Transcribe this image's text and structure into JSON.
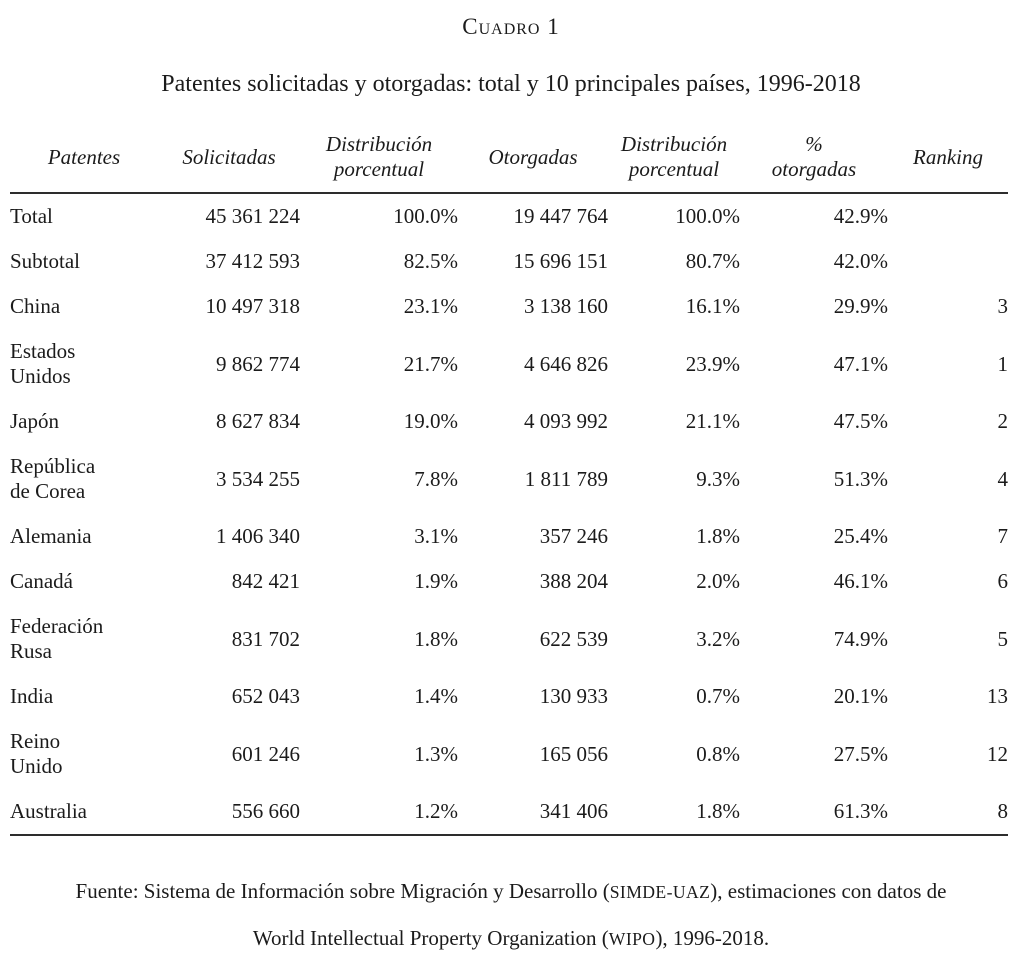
{
  "caption": {
    "number": "Cuadro 1",
    "title": "Patentes solicitadas y otorgadas: total y 10 principales países, 1996-2018"
  },
  "table": {
    "columns": [
      "Patentes",
      "Solicitadas",
      "Distribución\nporcentual",
      "Otorgadas",
      "Distribución\nporcentual",
      "%\notorgadas",
      "Ranking"
    ],
    "rows": [
      {
        "name": "Total",
        "solicitadas": "45 361 224",
        "dist1": "100.0%",
        "otorgadas": "19 447 764",
        "dist2": "100.0%",
        "pct": "42.9%",
        "ranking": ""
      },
      {
        "name": "Subtotal",
        "solicitadas": "37 412 593",
        "dist1": "82.5%",
        "otorgadas": "15 696 151",
        "dist2": "80.7%",
        "pct": "42.0%",
        "ranking": ""
      },
      {
        "name": "China",
        "solicitadas": "10 497 318",
        "dist1": "23.1%",
        "otorgadas": "3 138 160",
        "dist2": "16.1%",
        "pct": "29.9%",
        "ranking": "3"
      },
      {
        "name": "Estados\nUnidos",
        "solicitadas": "9 862 774",
        "dist1": "21.7%",
        "otorgadas": "4 646 826",
        "dist2": "23.9%",
        "pct": "47.1%",
        "ranking": "1"
      },
      {
        "name": "Japón",
        "solicitadas": "8 627 834",
        "dist1": "19.0%",
        "otorgadas": "4 093 992",
        "dist2": "21.1%",
        "pct": "47.5%",
        "ranking": "2"
      },
      {
        "name": "República\nde Corea",
        "solicitadas": "3 534 255",
        "dist1": "7.8%",
        "otorgadas": "1 811 789",
        "dist2": "9.3%",
        "pct": "51.3%",
        "ranking": "4"
      },
      {
        "name": "Alemania",
        "solicitadas": "1 406 340",
        "dist1": "3.1%",
        "otorgadas": "357 246",
        "dist2": "1.8%",
        "pct": "25.4%",
        "ranking": "7"
      },
      {
        "name": "Canadá",
        "solicitadas": "842 421",
        "dist1": "1.9%",
        "otorgadas": "388 204",
        "dist2": "2.0%",
        "pct": "46.1%",
        "ranking": "6"
      },
      {
        "name": "Federación\nRusa",
        "solicitadas": "831 702",
        "dist1": "1.8%",
        "otorgadas": "622 539",
        "dist2": "3.2%",
        "pct": "74.9%",
        "ranking": "5"
      },
      {
        "name": "India",
        "solicitadas": "652 043",
        "dist1": "1.4%",
        "otorgadas": "130 933",
        "dist2": "0.7%",
        "pct": "20.1%",
        "ranking": "13"
      },
      {
        "name": "Reino\nUnido",
        "solicitadas": "601 246",
        "dist1": "1.3%",
        "otorgadas": "165 056",
        "dist2": "0.8%",
        "pct": "27.5%",
        "ranking": "12"
      },
      {
        "name": "Australia",
        "solicitadas": "556 660",
        "dist1": "1.2%",
        "otorgadas": "341 406",
        "dist2": "1.8%",
        "pct": "61.3%",
        "ranking": "8"
      }
    ]
  },
  "source": {
    "line1_prefix": "Fuente: Sistema de Información sobre Migración y Desarrollo (",
    "line1_acronym": "SIMDE-UAZ",
    "line1_suffix": "), estimaciones con datos de",
    "line2_prefix": "World Intellectual Property Organization (",
    "line2_acronym": "WIPO",
    "line2_suffix": "), 1996-2018."
  }
}
